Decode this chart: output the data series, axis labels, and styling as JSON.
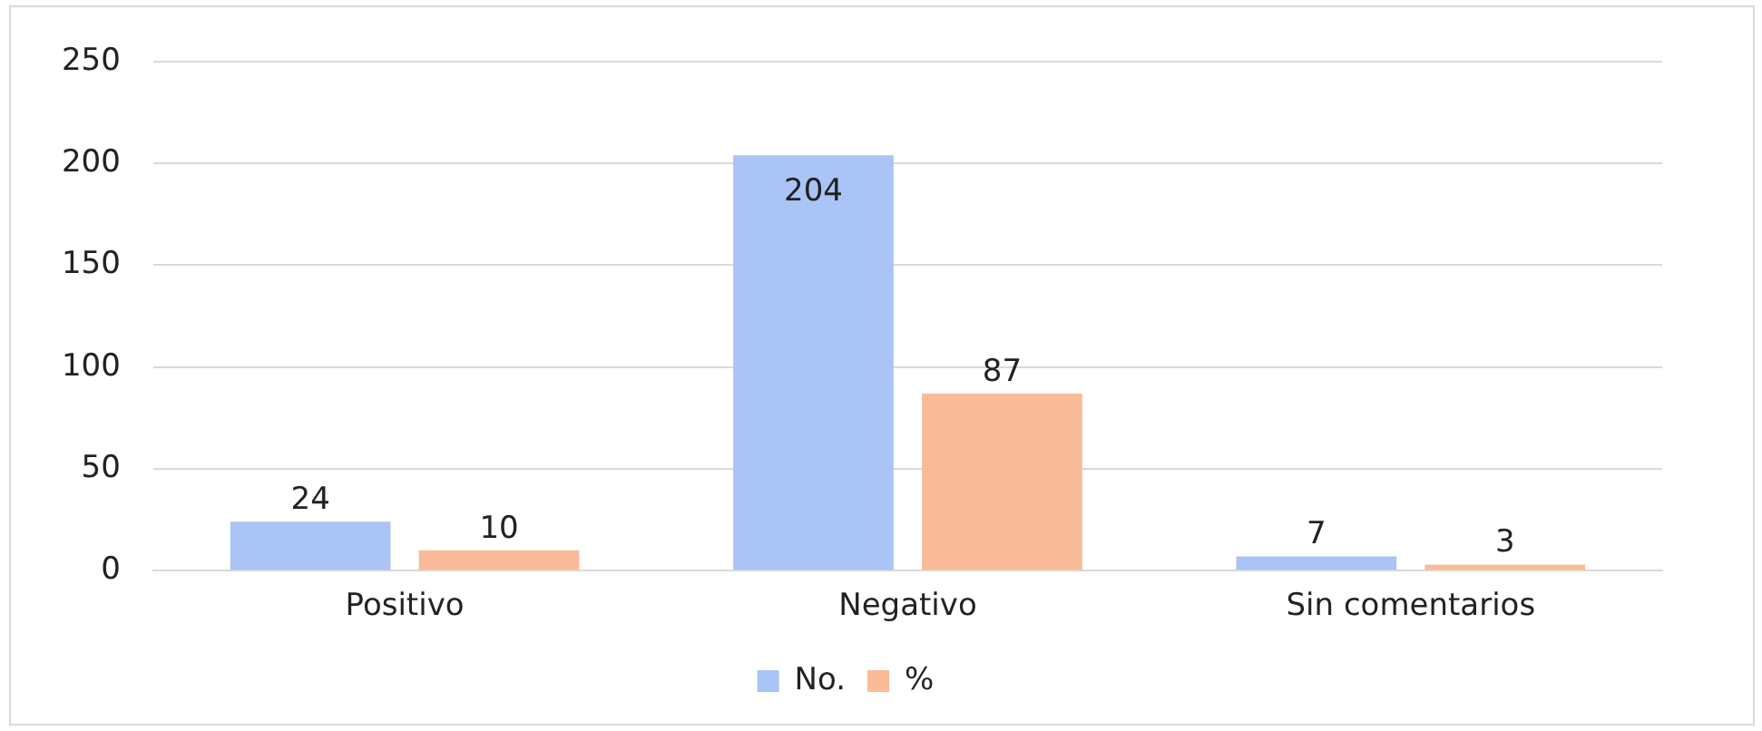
{
  "chart_data": {
    "type": "bar",
    "categories": [
      "Positivo",
      "Negativo",
      "Sin comentarios"
    ],
    "series": [
      {
        "name": "No.",
        "color": "#a9c4f5",
        "values": [
          24,
          204,
          7
        ]
      },
      {
        "name": "%",
        "color": "#f9bb98",
        "values": [
          10,
          87,
          3
        ]
      }
    ],
    "ylim": [
      0,
      250
    ],
    "yticks": [
      0,
      50,
      100,
      150,
      200,
      250
    ],
    "grid": "y",
    "legend": "bottom",
    "data_labels": true
  }
}
